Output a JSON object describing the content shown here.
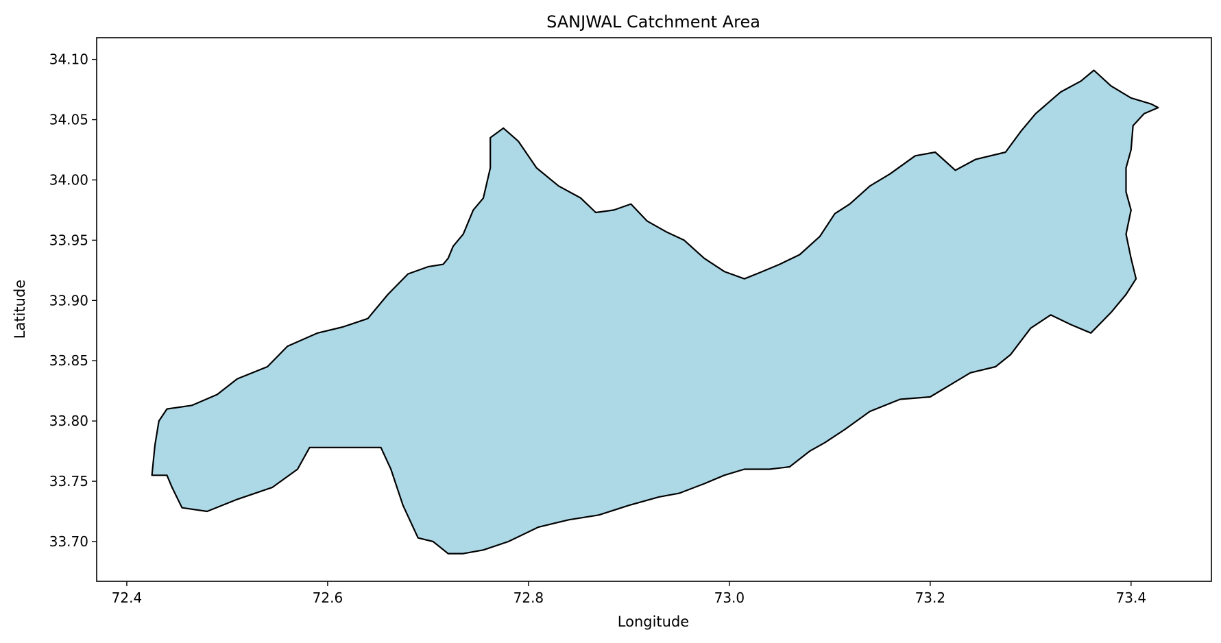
{
  "chart_data": {
    "type": "map",
    "title": "SANJWAL Catchment Area",
    "xlabel": "Longitude",
    "ylabel": "Latitude",
    "xlim": [
      72.37,
      73.48
    ],
    "ylim": [
      33.667,
      34.118
    ],
    "x_ticks": [
      {
        "value": 72.4,
        "label": "72.4"
      },
      {
        "value": 72.6,
        "label": "72.6"
      },
      {
        "value": 72.8,
        "label": "72.8"
      },
      {
        "value": 73.0,
        "label": "73.0"
      },
      {
        "value": 73.2,
        "label": "73.2"
      },
      {
        "value": 73.4,
        "label": "73.4"
      }
    ],
    "y_ticks": [
      {
        "value": 33.7,
        "label": "33.70"
      },
      {
        "value": 33.75,
        "label": "33.75"
      },
      {
        "value": 33.8,
        "label": "33.80"
      },
      {
        "value": 33.85,
        "label": "33.85"
      },
      {
        "value": 33.9,
        "label": "33.90"
      },
      {
        "value": 33.95,
        "label": "33.95"
      },
      {
        "value": 34.0,
        "label": "34.00"
      },
      {
        "value": 34.05,
        "label": "34.05"
      },
      {
        "value": 34.1,
        "label": "34.10"
      }
    ],
    "grid": false,
    "fill_color": "#add8e6",
    "edge_color": "#000000",
    "boundary": [
      [
        72.425,
        33.755
      ],
      [
        72.428,
        33.78
      ],
      [
        72.432,
        33.8
      ],
      [
        72.44,
        33.81
      ],
      [
        72.465,
        33.813
      ],
      [
        72.49,
        33.822
      ],
      [
        72.51,
        33.835
      ],
      [
        72.54,
        33.845
      ],
      [
        72.56,
        33.862
      ],
      [
        72.59,
        33.873
      ],
      [
        72.615,
        33.878
      ],
      [
        72.64,
        33.885
      ],
      [
        72.66,
        33.905
      ],
      [
        72.68,
        33.922
      ],
      [
        72.7,
        33.928
      ],
      [
        72.715,
        33.93
      ],
      [
        72.72,
        33.935
      ],
      [
        72.725,
        33.945
      ],
      [
        72.735,
        33.955
      ],
      [
        72.745,
        33.975
      ],
      [
        72.755,
        33.985
      ],
      [
        72.762,
        34.01
      ],
      [
        72.762,
        34.035
      ],
      [
        72.775,
        34.043
      ],
      [
        72.79,
        34.032
      ],
      [
        72.808,
        34.01
      ],
      [
        72.83,
        33.995
      ],
      [
        72.852,
        33.985
      ],
      [
        72.867,
        33.973
      ],
      [
        72.885,
        33.975
      ],
      [
        72.902,
        33.98
      ],
      [
        72.918,
        33.966
      ],
      [
        72.937,
        33.957
      ],
      [
        72.955,
        33.95
      ],
      [
        72.975,
        33.935
      ],
      [
        72.995,
        33.924
      ],
      [
        73.015,
        33.918
      ],
      [
        73.03,
        33.923
      ],
      [
        73.05,
        33.93
      ],
      [
        73.07,
        33.938
      ],
      [
        73.09,
        33.953
      ],
      [
        73.105,
        33.972
      ],
      [
        73.12,
        33.98
      ],
      [
        73.14,
        33.995
      ],
      [
        73.16,
        34.005
      ],
      [
        73.185,
        34.02
      ],
      [
        73.205,
        34.023
      ],
      [
        73.225,
        34.008
      ],
      [
        73.245,
        34.017
      ],
      [
        73.275,
        34.023
      ],
      [
        73.29,
        34.04
      ],
      [
        73.305,
        34.055
      ],
      [
        73.33,
        34.073
      ],
      [
        73.35,
        34.082
      ],
      [
        73.363,
        34.091
      ],
      [
        73.38,
        34.078
      ],
      [
        73.4,
        34.068
      ],
      [
        73.42,
        34.063
      ],
      [
        73.427,
        34.06
      ],
      [
        73.413,
        34.055
      ],
      [
        73.402,
        34.045
      ],
      [
        73.4,
        34.025
      ],
      [
        73.395,
        34.01
      ],
      [
        73.395,
        33.99
      ],
      [
        73.4,
        33.975
      ],
      [
        73.395,
        33.955
      ],
      [
        73.4,
        33.935
      ],
      [
        73.405,
        33.918
      ],
      [
        73.395,
        33.905
      ],
      [
        73.38,
        33.89
      ],
      [
        73.36,
        33.873
      ],
      [
        73.34,
        33.88
      ],
      [
        73.32,
        33.888
      ],
      [
        73.3,
        33.877
      ],
      [
        73.28,
        33.855
      ],
      [
        73.265,
        33.845
      ],
      [
        73.24,
        33.84
      ],
      [
        73.22,
        33.83
      ],
      [
        73.2,
        33.82
      ],
      [
        73.17,
        33.818
      ],
      [
        73.14,
        33.808
      ],
      [
        73.115,
        33.793
      ],
      [
        73.095,
        33.782
      ],
      [
        73.08,
        33.775
      ],
      [
        73.06,
        33.762
      ],
      [
        73.04,
        33.76
      ],
      [
        73.015,
        33.76
      ],
      [
        72.995,
        33.755
      ],
      [
        72.975,
        33.748
      ],
      [
        72.95,
        33.74
      ],
      [
        72.93,
        33.737
      ],
      [
        72.9,
        33.73
      ],
      [
        72.87,
        33.722
      ],
      [
        72.84,
        33.718
      ],
      [
        72.81,
        33.712
      ],
      [
        72.78,
        33.7
      ],
      [
        72.755,
        33.693
      ],
      [
        72.735,
        33.69
      ],
      [
        72.72,
        33.69
      ],
      [
        72.705,
        33.7
      ],
      [
        72.69,
        33.703
      ],
      [
        72.675,
        33.73
      ],
      [
        72.663,
        33.76
      ],
      [
        72.653,
        33.778
      ],
      [
        72.635,
        33.778
      ],
      [
        72.61,
        33.778
      ],
      [
        72.582,
        33.778
      ],
      [
        72.57,
        33.76
      ],
      [
        72.545,
        33.745
      ],
      [
        72.51,
        33.735
      ],
      [
        72.48,
        33.725
      ],
      [
        72.455,
        33.728
      ],
      [
        72.445,
        33.745
      ],
      [
        72.44,
        33.755
      ],
      [
        72.425,
        33.755
      ]
    ]
  }
}
